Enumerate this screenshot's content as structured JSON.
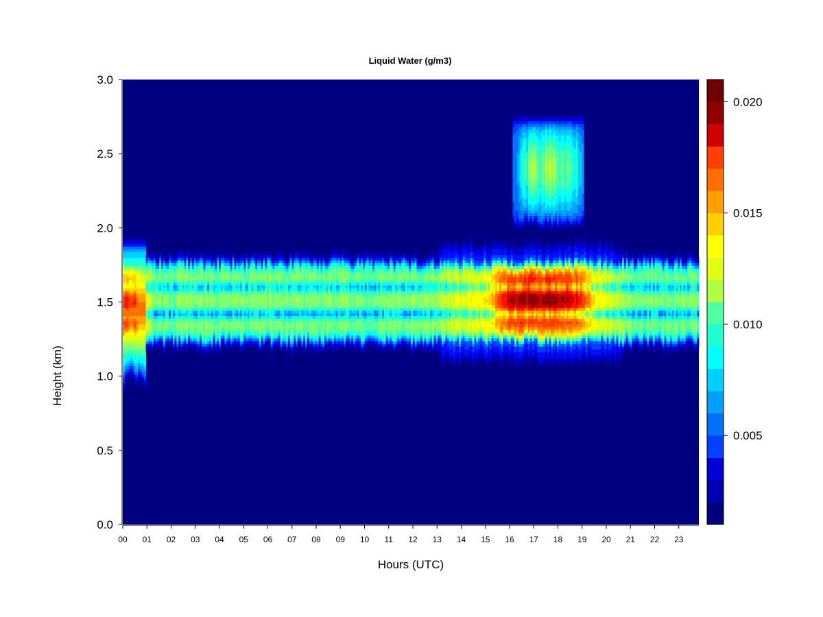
{
  "chart_data": {
    "type": "heatmap",
    "title": "Liquid Water (g/m3)",
    "xlabel": "Hours (UTC)",
    "ylabel": "Height (km)",
    "xlim": [
      0,
      23.85
    ],
    "ylim": [
      0,
      3.0
    ],
    "x_ticks": [
      "00",
      "01",
      "02",
      "03",
      "04",
      "05",
      "06",
      "07",
      "08",
      "09",
      "10",
      "11",
      "12",
      "13",
      "14",
      "15",
      "16",
      "17",
      "18",
      "19",
      "20",
      "21",
      "22",
      "23"
    ],
    "y_ticks": [
      "0.0",
      "0.5",
      "1.0",
      "1.5",
      "2.0",
      "2.5",
      "3.0"
    ],
    "colorbar": {
      "range": [
        0.001,
        0.021
      ],
      "levels": 20,
      "ticks": [
        "0.005",
        "0.010",
        "0.015",
        "0.020"
      ],
      "colors": [
        "#000080",
        "#0000B0",
        "#0000D8",
        "#0010FF",
        "#0040FF",
        "#0070FF",
        "#00A0FF",
        "#00D0FF",
        "#00FFFF",
        "#20FFD0",
        "#50FFA0",
        "#80FF70",
        "#B0FF40",
        "#E0FF10",
        "#FFFF00",
        "#FFD000",
        "#FFA000",
        "#FF7000",
        "#FF4000",
        "#FF1000",
        "#D00000",
        "#900000",
        "#700000"
      ]
    },
    "features": [
      {
        "name": "main liquid layer",
        "x": [
          0,
          23.85
        ],
        "height_km": [
          1.25,
          1.75
        ],
        "value_range": [
          0.008,
          0.014
        ]
      },
      {
        "name": "early maximum",
        "x": [
          0,
          0.9
        ],
        "height_km": [
          1.0,
          1.9
        ],
        "peak": 0.018
      },
      {
        "name": "afternoon maximum",
        "x": [
          15.6,
          19.0
        ],
        "height_km": [
          1.2,
          1.8
        ],
        "peak": 0.017
      },
      {
        "name": "upper cloud layer",
        "x": [
          16.2,
          19.0
        ],
        "height_km": [
          2.05,
          2.72
        ],
        "peak": 0.01
      }
    ],
    "grid": false
  }
}
